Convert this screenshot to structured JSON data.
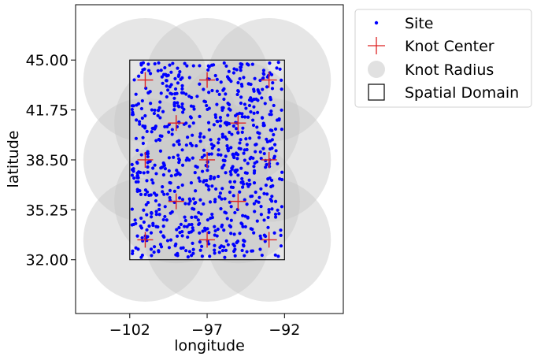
{
  "chart_data": {
    "type": "scatter",
    "xlabel": "longitude",
    "ylabel": "latitude",
    "xlim": [
      -105.5,
      -88.2
    ],
    "ylim": [
      28.5,
      48.6
    ],
    "x_ticks": [
      -102,
      -97,
      -92
    ],
    "x_tick_labels": [
      "−102",
      "−97",
      "−92"
    ],
    "y_ticks": [
      32.0,
      35.25,
      38.5,
      41.75,
      45.0
    ],
    "y_tick_labels": [
      "32.00",
      "35.25",
      "38.50",
      "41.75",
      "45.00"
    ],
    "grid": false,
    "legend_position": "outside-right-top",
    "spatial_domain": {
      "x": [
        -102,
        -92
      ],
      "y": [
        32.0,
        45.0
      ]
    },
    "knot_radius_deg": 4.0,
    "knot_centers": [
      {
        "x": -101,
        "y": 43.7
      },
      {
        "x": -97,
        "y": 43.7
      },
      {
        "x": -93,
        "y": 43.7
      },
      {
        "x": -99,
        "y": 40.9
      },
      {
        "x": -95,
        "y": 40.9
      },
      {
        "x": -101,
        "y": 38.5
      },
      {
        "x": -97,
        "y": 38.5
      },
      {
        "x": -93,
        "y": 38.5
      },
      {
        "x": -99,
        "y": 35.8
      },
      {
        "x": -95,
        "y": 35.8
      },
      {
        "x": -101,
        "y": 33.3
      },
      {
        "x": -97,
        "y": 33.3
      },
      {
        "x": -93,
        "y": 33.3
      }
    ],
    "sites": {
      "count": 800,
      "x_range": [
        -102,
        -92
      ],
      "y_range": [
        32.0,
        45.0
      ],
      "seed": 7
    },
    "legend": [
      "Site",
      "Knot Center",
      "Knot Radius",
      "Spatial Domain"
    ],
    "colors": {
      "site": "#0000ff",
      "knot_center": "#dd2222",
      "knot_radius": "#c8c8c8",
      "domain_edge": "#000000",
      "axes_edge": "#000000"
    }
  }
}
